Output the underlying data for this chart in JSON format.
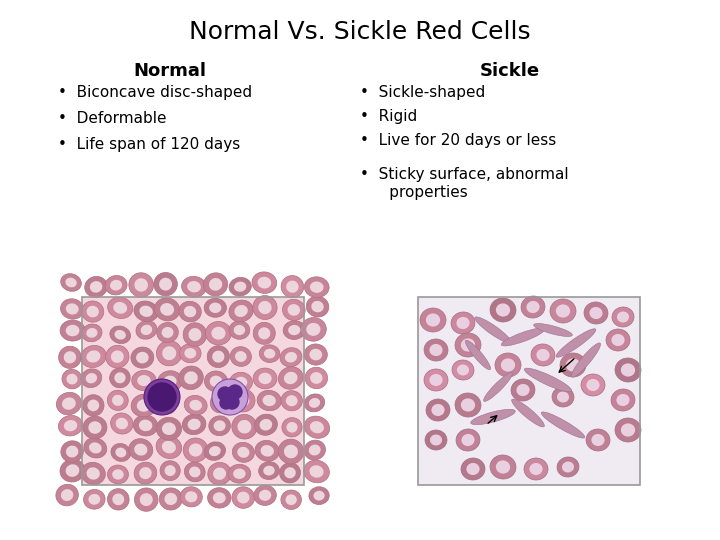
{
  "title": "Normal Vs. Sickle Red Cells",
  "title_fontsize": 18,
  "title_font": "Georgia",
  "bg_color": "#ffffff",
  "left_header": "Normal",
  "right_header": "Sickle",
  "header_fontsize": 13,
  "left_bullets": [
    "Biconcave disc-shaped",
    "Deformable",
    "Life span of 120 days"
  ],
  "right_bullets": [
    "Sickle-shaped",
    "Rigid",
    "Live for 20 days or less",
    "Sticky surface, abnormal\nproperties"
  ],
  "bullet_fontsize": 11,
  "bullet_font": "Georgia",
  "left_img_bg": "#f5d8df",
  "right_img_bg": "#f0eaf2",
  "image_border_color": "#999999",
  "rbc_outer": "#c8859a",
  "rbc_inner": "#edd5de",
  "rbc_edge": "#b07080",
  "sickle_color": "#c090a8",
  "sickle_edge": "#9a7090"
}
